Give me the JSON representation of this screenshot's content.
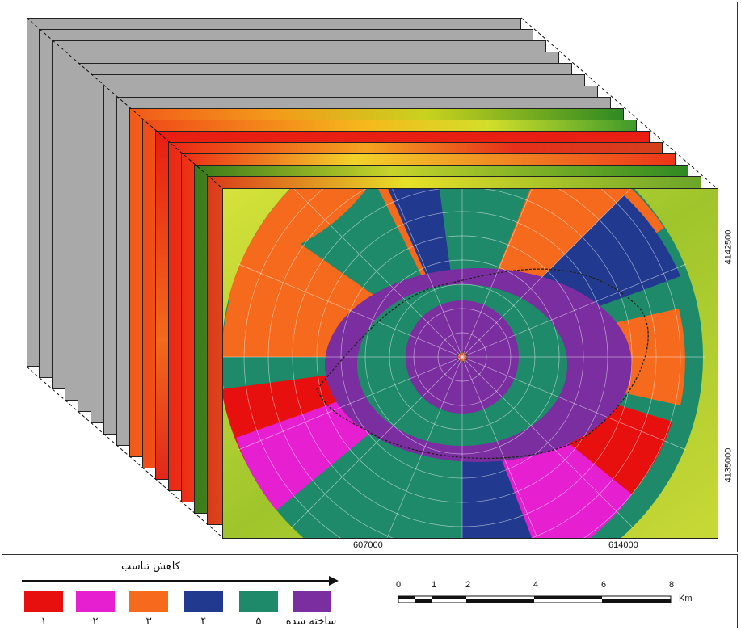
{
  "map": {
    "coords": {
      "x_left": "607000",
      "x_right": "614000",
      "y_top": "4142500",
      "y_bottom": "4135000"
    },
    "legend_colors": {
      "class_1": "#e8100f",
      "class_2": "#e61fd0",
      "class_3": "#f56a1c",
      "class_4": "#213a8f",
      "class_5": "#1f8a6a",
      "built_up": "#7a2ea0"
    }
  },
  "legend": {
    "direction_label": "کاهش تناسب",
    "items": [
      {
        "label": "۱",
        "color": "#e8100f"
      },
      {
        "label": "۲",
        "color": "#e61fd0"
      },
      {
        "label": "۳",
        "color": "#f56a1c"
      },
      {
        "label": "۴",
        "color": "#213a8f"
      },
      {
        "label": "۵",
        "color": "#1f8a6a"
      },
      {
        "label": "ساخته شده",
        "color": "#7a2ea0"
      }
    ]
  },
  "scalebar": {
    "ticks": [
      "0",
      "1",
      "2",
      "4",
      "6",
      "8"
    ],
    "unit": "Km"
  }
}
